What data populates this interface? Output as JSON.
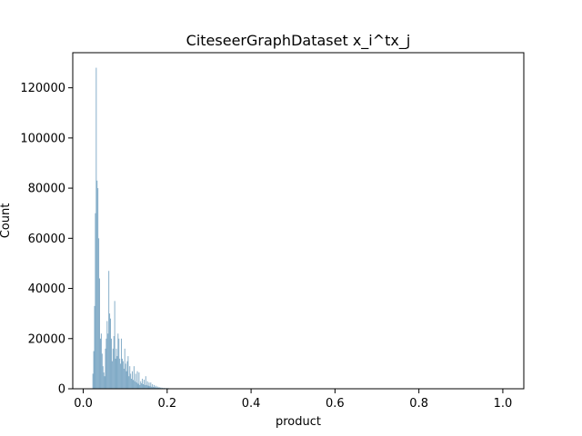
{
  "chart_data": {
    "type": "bar",
    "title": "CiteseerGraphDataset x_i^tx_j",
    "xlabel": "product",
    "ylabel": "Count",
    "xlim": [
      -0.025,
      1.05
    ],
    "ylim": [
      0,
      134000
    ],
    "xticks": [
      0.0,
      0.2,
      0.4,
      0.6,
      0.8,
      1.0
    ],
    "xtick_labels": [
      "0.0",
      "0.2",
      "0.4",
      "0.6",
      "0.8",
      "1.0"
    ],
    "yticks": [
      0,
      20000,
      40000,
      60000,
      80000,
      100000,
      120000
    ],
    "ytick_labels": [
      "0",
      "20000",
      "40000",
      "60000",
      "80000",
      "100000",
      "120000"
    ],
    "grid": false,
    "bar_color": "#6f9ebf",
    "bins": [
      {
        "x": 0.022,
        "count": 6000
      },
      {
        "x": 0.024,
        "count": 15000
      },
      {
        "x": 0.026,
        "count": 33000
      },
      {
        "x": 0.028,
        "count": 70000
      },
      {
        "x": 0.03,
        "count": 128000
      },
      {
        "x": 0.032,
        "count": 83000
      },
      {
        "x": 0.034,
        "count": 80000
      },
      {
        "x": 0.036,
        "count": 60000
      },
      {
        "x": 0.038,
        "count": 44000
      },
      {
        "x": 0.04,
        "count": 20000
      },
      {
        "x": 0.042,
        "count": 22000
      },
      {
        "x": 0.044,
        "count": 14000
      },
      {
        "x": 0.046,
        "count": 9000
      },
      {
        "x": 0.048,
        "count": 6500
      },
      {
        "x": 0.05,
        "count": 5000
      },
      {
        "x": 0.052,
        "count": 16000
      },
      {
        "x": 0.054,
        "count": 20000
      },
      {
        "x": 0.056,
        "count": 27000
      },
      {
        "x": 0.058,
        "count": 22000
      },
      {
        "x": 0.06,
        "count": 47000
      },
      {
        "x": 0.062,
        "count": 30000
      },
      {
        "x": 0.064,
        "count": 28000
      },
      {
        "x": 0.066,
        "count": 20000
      },
      {
        "x": 0.068,
        "count": 11000
      },
      {
        "x": 0.07,
        "count": 16000
      },
      {
        "x": 0.072,
        "count": 21000
      },
      {
        "x": 0.074,
        "count": 35000
      },
      {
        "x": 0.076,
        "count": 12000
      },
      {
        "x": 0.078,
        "count": 16000
      },
      {
        "x": 0.08,
        "count": 13000
      },
      {
        "x": 0.082,
        "count": 22000
      },
      {
        "x": 0.084,
        "count": 20000
      },
      {
        "x": 0.086,
        "count": 12000
      },
      {
        "x": 0.088,
        "count": 10000
      },
      {
        "x": 0.09,
        "count": 20000
      },
      {
        "x": 0.092,
        "count": 12000
      },
      {
        "x": 0.094,
        "count": 11000
      },
      {
        "x": 0.096,
        "count": 8000
      },
      {
        "x": 0.098,
        "count": 16000
      },
      {
        "x": 0.1,
        "count": 10000
      },
      {
        "x": 0.102,
        "count": 7000
      },
      {
        "x": 0.104,
        "count": 11000
      },
      {
        "x": 0.106,
        "count": 13000
      },
      {
        "x": 0.108,
        "count": 5000
      },
      {
        "x": 0.11,
        "count": 9000
      },
      {
        "x": 0.112,
        "count": 6000
      },
      {
        "x": 0.114,
        "count": 4000
      },
      {
        "x": 0.116,
        "count": 7000
      },
      {
        "x": 0.118,
        "count": 3500
      },
      {
        "x": 0.12,
        "count": 9000
      },
      {
        "x": 0.122,
        "count": 3000
      },
      {
        "x": 0.124,
        "count": 6000
      },
      {
        "x": 0.126,
        "count": 2500
      },
      {
        "x": 0.128,
        "count": 7000
      },
      {
        "x": 0.13,
        "count": 2000
      },
      {
        "x": 0.132,
        "count": 6500
      },
      {
        "x": 0.134,
        "count": 1500
      },
      {
        "x": 0.136,
        "count": 3000
      },
      {
        "x": 0.138,
        "count": 2200
      },
      {
        "x": 0.14,
        "count": 4000
      },
      {
        "x": 0.142,
        "count": 1800
      },
      {
        "x": 0.144,
        "count": 3600
      },
      {
        "x": 0.146,
        "count": 1500
      },
      {
        "x": 0.148,
        "count": 5000
      },
      {
        "x": 0.15,
        "count": 1500
      },
      {
        "x": 0.152,
        "count": 3000
      },
      {
        "x": 0.154,
        "count": 1200
      },
      {
        "x": 0.156,
        "count": 2500
      },
      {
        "x": 0.158,
        "count": 1000
      },
      {
        "x": 0.16,
        "count": 2500
      },
      {
        "x": 0.162,
        "count": 800
      },
      {
        "x": 0.164,
        "count": 1800
      },
      {
        "x": 0.166,
        "count": 700
      },
      {
        "x": 0.168,
        "count": 1500
      },
      {
        "x": 0.17,
        "count": 600
      },
      {
        "x": 0.172,
        "count": 1200
      },
      {
        "x": 0.174,
        "count": 500
      },
      {
        "x": 0.176,
        "count": 900
      },
      {
        "x": 0.178,
        "count": 400
      },
      {
        "x": 0.18,
        "count": 700
      },
      {
        "x": 0.182,
        "count": 300
      },
      {
        "x": 0.184,
        "count": 500
      },
      {
        "x": 0.186,
        "count": 250
      },
      {
        "x": 0.188,
        "count": 400
      },
      {
        "x": 0.19,
        "count": 200
      },
      {
        "x": 0.192,
        "count": 350
      },
      {
        "x": 0.194,
        "count": 150
      },
      {
        "x": 0.196,
        "count": 300
      },
      {
        "x": 0.198,
        "count": 120
      },
      {
        "x": 0.2,
        "count": 250
      },
      {
        "x": 0.204,
        "count": 150
      },
      {
        "x": 0.208,
        "count": 120
      },
      {
        "x": 0.212,
        "count": 90
      },
      {
        "x": 0.216,
        "count": 70
      },
      {
        "x": 0.22,
        "count": 50
      },
      {
        "x": 0.226,
        "count": 40
      },
      {
        "x": 0.232,
        "count": 30
      },
      {
        "x": 0.24,
        "count": 20
      },
      {
        "x": 0.25,
        "count": 10
      }
    ]
  }
}
